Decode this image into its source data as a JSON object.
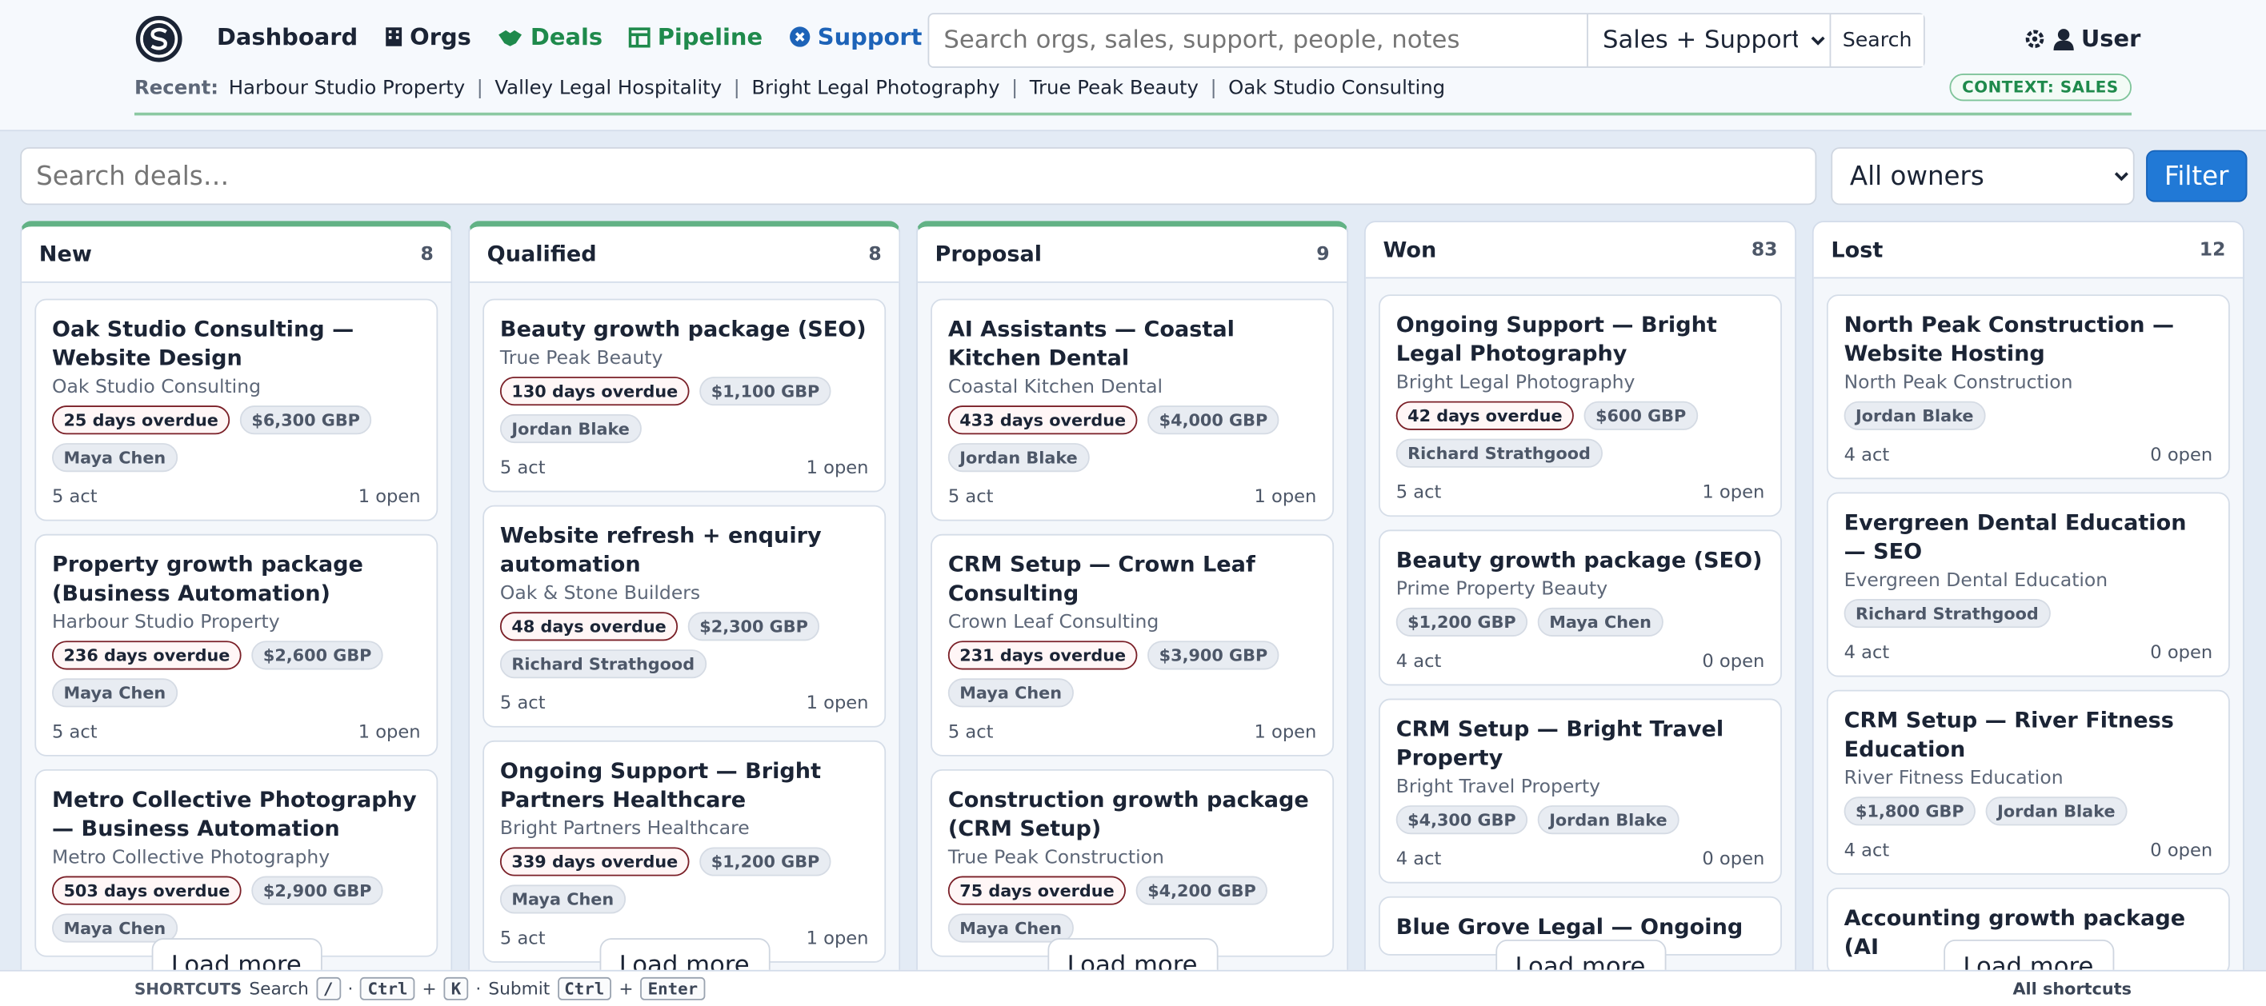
{
  "nav": {
    "links": [
      "Dashboard",
      "Orgs",
      "Deals",
      "Pipeline",
      "Support"
    ],
    "search_placeholder": "Search orgs, sales, support, people, notes",
    "scope": "Sales + Support",
    "search_button": "Search",
    "user": "User"
  },
  "recent": {
    "label": "Recent:",
    "items": [
      "Harbour Studio Property",
      "Valley Legal Hospitality",
      "Bright Legal Photography",
      "True Peak Beauty",
      "Oak Studio Consulting"
    ],
    "context": "CONTEXT: SALES"
  },
  "toolbar": {
    "search_placeholder": "Search deals…",
    "owner": "All owners",
    "filter": "Filter"
  },
  "columns": [
    {
      "name": "New",
      "count": 8,
      "load_more": "Load more",
      "cards": [
        {
          "title": "Oak Studio Consulting — Website Design",
          "org": "Oak Studio Consulting",
          "overdue": "25 days overdue",
          "amount": "$6,300 GBP",
          "owner": "Maya Chen",
          "activities": "5 act",
          "open": "1 open"
        },
        {
          "title": "Property growth package (Business Automation)",
          "org": "Harbour Studio Property",
          "overdue": "236 days overdue",
          "amount": "$2,600 GBP",
          "owner": "Maya Chen",
          "activities": "5 act",
          "open": "1 open"
        },
        {
          "title": "Metro Collective Photography — Business Automation",
          "org": "Metro Collective Photography",
          "overdue": "503 days overdue",
          "amount": "$2,900 GBP",
          "owner": "Maya Chen"
        }
      ]
    },
    {
      "name": "Qualified",
      "count": 8,
      "load_more": "Load more",
      "cards": [
        {
          "title": "Beauty growth package (SEO)",
          "org": "True Peak Beauty",
          "overdue": "130 days overdue",
          "amount": "$1,100 GBP",
          "owner": "Jordan Blake",
          "activities": "5 act",
          "open": "1 open"
        },
        {
          "title": "Website refresh + enquiry automation",
          "org": "Oak & Stone Builders",
          "overdue": "48 days overdue",
          "amount": "$2,300 GBP",
          "owner": "Richard Strathgood",
          "activities": "5 act",
          "open": "1 open"
        },
        {
          "title": "Ongoing Support — Bright Partners Healthcare",
          "org": "Bright Partners Healthcare",
          "overdue": "339 days overdue",
          "amount": "$1,200 GBP",
          "owner": "Maya Chen",
          "activities": "5 act",
          "open": "1 open"
        }
      ]
    },
    {
      "name": "Proposal",
      "count": 9,
      "load_more": "Load more",
      "cards": [
        {
          "title": "AI Assistants — Coastal Kitchen Dental",
          "org": "Coastal Kitchen Dental",
          "overdue": "433 days overdue",
          "amount": "$4,000 GBP",
          "owner": "Jordan Blake",
          "activities": "5 act",
          "open": "1 open"
        },
        {
          "title": "CRM Setup — Crown Leaf Consulting",
          "org": "Crown Leaf Consulting",
          "overdue": "231 days overdue",
          "amount": "$3,900 GBP",
          "owner": "Maya Chen",
          "activities": "5 act",
          "open": "1 open"
        },
        {
          "title": "Construction growth package (CRM Setup)",
          "org": "True Peak Construction",
          "overdue": "75 days overdue",
          "amount": "$4,200 GBP",
          "owner": "Maya Chen"
        }
      ]
    },
    {
      "name": "Won",
      "count": 83,
      "load_more": "Load more",
      "cards": [
        {
          "title": "Ongoing Support — Bright Legal Photography",
          "org": "Bright Legal Photography",
          "overdue": "42 days overdue",
          "amount": "$600 GBP",
          "owner": "Richard Strathgood",
          "activities": "5 act",
          "open": "1 open"
        },
        {
          "title": "Beauty growth package (SEO)",
          "org": "Prime Property Beauty",
          "amount": "$1,200 GBP",
          "owner": "Maya Chen",
          "activities": "4 act",
          "open": "0 open"
        },
        {
          "title": "CRM Setup — Bright Travel Property",
          "org": "Bright Travel Property",
          "amount": "$4,300 GBP",
          "owner": "Jordan Blake",
          "activities": "4 act",
          "open": "0 open"
        },
        {
          "title": "Blue Grove Legal — Ongoing"
        }
      ]
    },
    {
      "name": "Lost",
      "count": 12,
      "load_more": "Load more",
      "cards": [
        {
          "title": "North Peak Construction — Website Hosting",
          "org": "North Peak Construction",
          "owner": "Jordan Blake",
          "activities": "4 act",
          "open": "0 open"
        },
        {
          "title": "Evergreen Dental Education — SEO",
          "org": "Evergreen Dental Education",
          "owner": "Richard Strathgood",
          "activities": "4 act",
          "open": "0 open"
        },
        {
          "title": "CRM Setup — River Fitness Education",
          "org": "River Fitness Education",
          "amount": "$1,800 GBP",
          "owner": "Jordan Blake",
          "activities": "4 act",
          "open": "0 open"
        },
        {
          "title": "Accounting growth package (AI"
        }
      ]
    }
  ],
  "shortcuts": {
    "label": "SHORTCUTS",
    "items": [
      "Search",
      "/",
      "·",
      "Ctrl",
      "+",
      "K",
      "·",
      "Submit",
      "Ctrl",
      "+",
      "Enter"
    ],
    "all": "All shortcuts"
  }
}
